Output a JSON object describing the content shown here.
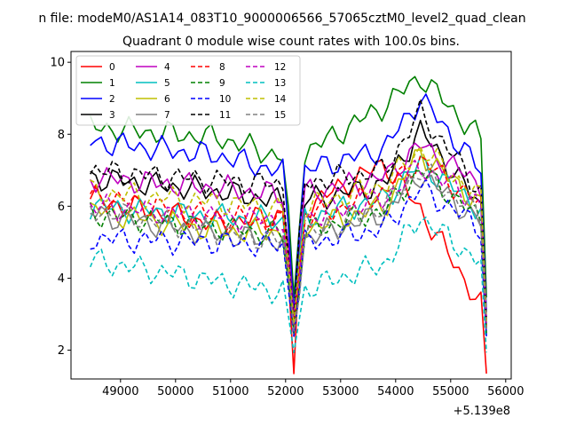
{
  "figure": {
    "suptitle": "n file: modeM0/AS1A14_083T10_9000006566_57065cztM0_level2_quad_clean",
    "offset_label": "+5.139e8"
  },
  "chart_data": {
    "type": "line",
    "title": "Quadrant 0 module wise count rates with 100.0s bins.",
    "xlabel": "",
    "ylabel": "",
    "xlim": [
      48100,
      56100
    ],
    "ylim": [
      1.2,
      10.3
    ],
    "x_offset": 513900000,
    "x_ticks": [
      49000,
      50000,
      51000,
      52000,
      53000,
      54000,
      55000,
      56000
    ],
    "y_ticks": [
      2,
      4,
      6,
      8,
      10
    ],
    "grid": false,
    "legend_position": "top-left",
    "x_start": 48450,
    "x_step": 100,
    "num_points": 73,
    "dip_x": [
      52150,
      55650
    ],
    "series": [
      {
        "name": "0",
        "color": "#ff0000",
        "dash": "solid",
        "levels": [
          6.2,
          5.5,
          5.8,
          7.2,
          5.9,
          3.0
        ]
      },
      {
        "name": "1",
        "color": "#008000",
        "dash": "solid",
        "levels": [
          8.2,
          7.9,
          7.3,
          8.8,
          9.6,
          7.7
        ]
      },
      {
        "name": "2",
        "color": "#0000ff",
        "dash": "solid",
        "levels": [
          7.8,
          7.4,
          6.9,
          7.6,
          9.0,
          6.8
        ]
      },
      {
        "name": "3",
        "color": "#000000",
        "dash": "solid",
        "levels": [
          6.8,
          6.4,
          6.1,
          6.6,
          8.1,
          5.8
        ]
      },
      {
        "name": "4",
        "color": "#bf00bf",
        "dash": "solid",
        "levels": [
          6.8,
          6.5,
          6.3,
          6.8,
          7.7,
          6.5
        ]
      },
      {
        "name": "5",
        "color": "#00bfbf",
        "dash": "solid",
        "levels": [
          6.0,
          5.7,
          5.6,
          6.2,
          7.2,
          5.8
        ]
      },
      {
        "name": "6",
        "color": "#bfbf00",
        "dash": "solid",
        "levels": [
          5.9,
          5.3,
          5.3,
          6.0,
          7.5,
          5.9
        ]
      },
      {
        "name": "7",
        "color": "#808080",
        "dash": "solid",
        "levels": [
          5.8,
          5.2,
          5.0,
          5.8,
          6.9,
          5.4
        ]
      },
      {
        "name": "8",
        "color": "#ff0000",
        "dash": "dashed",
        "levels": [
          6.3,
          5.7,
          5.5,
          6.4,
          7.3,
          5.9
        ]
      },
      {
        "name": "9",
        "color": "#008000",
        "dash": "dashed",
        "levels": [
          5.8,
          5.4,
          5.2,
          5.9,
          7.0,
          5.5
        ]
      },
      {
        "name": "10",
        "color": "#0000ff",
        "dash": "dashed",
        "levels": [
          5.1,
          5.0,
          4.9,
          5.4,
          6.5,
          5.3
        ]
      },
      {
        "name": "11",
        "color": "#000000",
        "dash": "dashed",
        "levels": [
          7.0,
          6.7,
          6.6,
          7.0,
          8.6,
          6.2
        ]
      },
      {
        "name": "12",
        "color": "#bf00bf",
        "dash": "dashed",
        "levels": [
          6.0,
          5.7,
          5.6,
          6.2,
          7.1,
          6.0
        ]
      },
      {
        "name": "13",
        "color": "#00bfbf",
        "dash": "dashed",
        "levels": [
          4.5,
          3.9,
          3.6,
          4.4,
          5.7,
          4.3
        ]
      },
      {
        "name": "14",
        "color": "#bfbf00",
        "dash": "dashed",
        "levels": [
          6.4,
          6.1,
          5.9,
          6.6,
          7.6,
          6.1
        ]
      },
      {
        "name": "15",
        "color": "#808080",
        "dash": "dashed",
        "levels": [
          5.9,
          5.3,
          5.0,
          6.0,
          7.0,
          5.6
        ]
      }
    ]
  }
}
